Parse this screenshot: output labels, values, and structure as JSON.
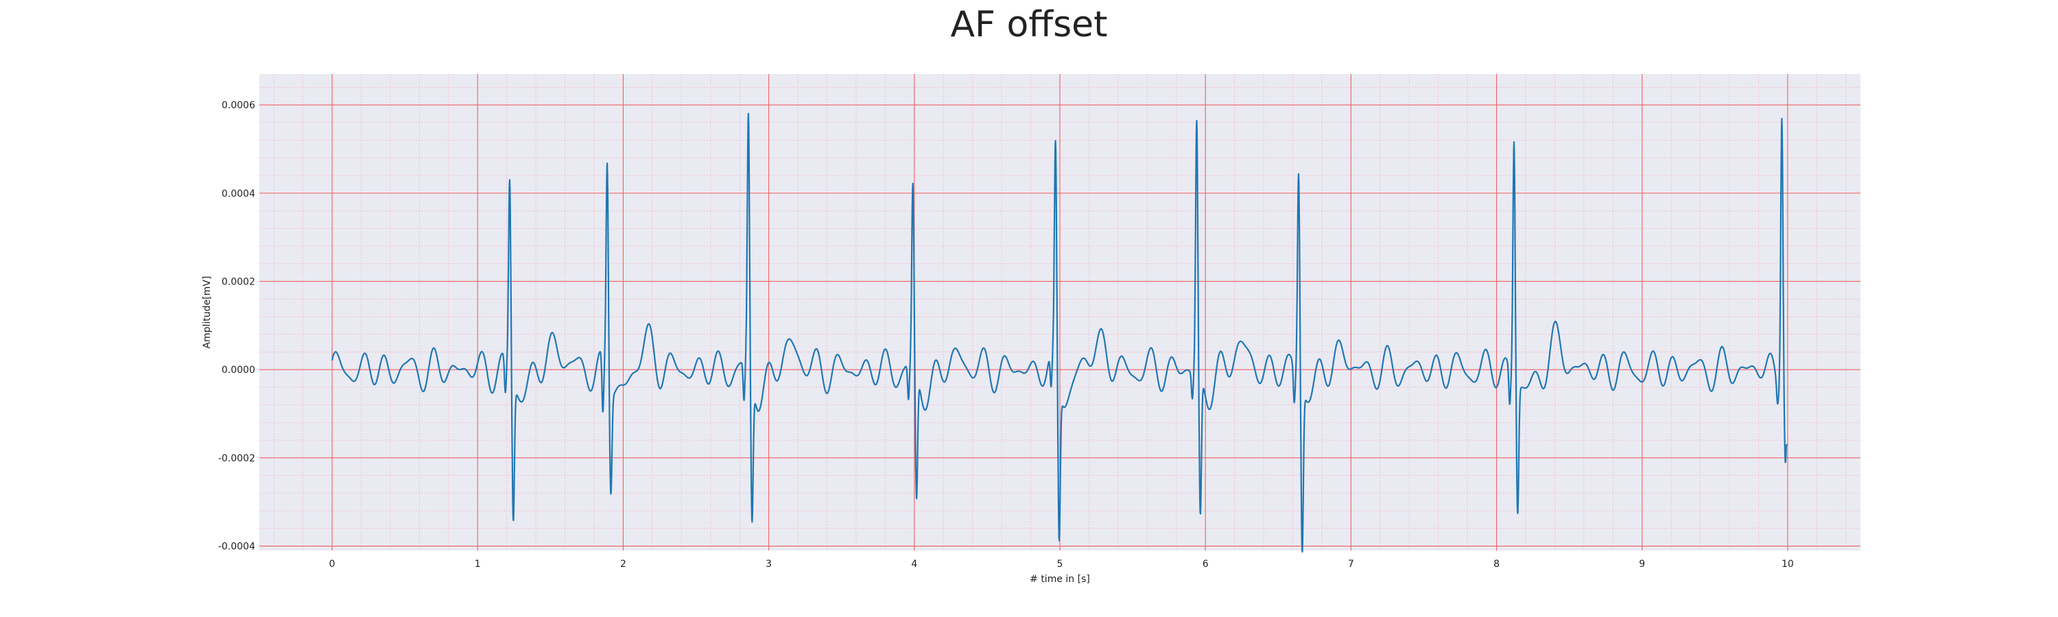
{
  "chart_data": {
    "type": "line",
    "title": "AF offset",
    "xlabel": "# time in [s]",
    "ylabel": "Amplitude[mV]",
    "xlim": [
      -0.5,
      10.5
    ],
    "ylim": [
      -0.00041,
      0.00067
    ],
    "xticks": [
      "0",
      "1",
      "2",
      "3",
      "4",
      "5",
      "6",
      "7",
      "8",
      "9",
      "10"
    ],
    "yticks": [
      "-0.0004",
      "-0.0002",
      "0.0000",
      "0.0002",
      "0.0004",
      "0.0006"
    ],
    "ytick_values": [
      -0.0004,
      -0.0002,
      0.0,
      0.0002,
      0.0004,
      0.0006
    ],
    "grid": true,
    "minor_grid": true,
    "background_color": "#eaeaf2",
    "grid_color": "#f06060",
    "minor_grid_color": "#f5b8c4",
    "series": [
      {
        "color": "#1f77b4",
        "beats": [
          {
            "t": 1.22,
            "peak": 0.00044,
            "trough": -0.00031,
            "q": -8e-05
          },
          {
            "t": 1.89,
            "peak": 0.00049,
            "trough": -0.00023,
            "q": -0.00013
          },
          {
            "t": 2.86,
            "peak": 0.00057,
            "trough": -0.00032,
            "q": -9e-05
          },
          {
            "t": 3.99,
            "peak": 0.00041,
            "trough": -0.00029,
            "q": -8e-05
          },
          {
            "t": 4.97,
            "peak": 0.0005,
            "trough": -0.00035,
            "q": -8e-05
          },
          {
            "t": 5.94,
            "peak": 0.00057,
            "trough": -0.00032,
            "q": -6e-05
          },
          {
            "t": 6.64,
            "peak": 0.00047,
            "trough": -0.00037,
            "q": -8e-05
          },
          {
            "t": 8.12,
            "peak": 0.00055,
            "trough": -0.00029,
            "q": -8e-05
          },
          {
            "t": 9.96,
            "peak": 0.00063,
            "trough": -0.00018,
            "q": -4e-05
          }
        ],
        "t_waves": [
          {
            "t": 1.54,
            "amp": 6e-05
          },
          {
            "t": 2.17,
            "amp": 6e-05
          },
          {
            "t": 3.16,
            "amp": 6e-05
          },
          {
            "t": 4.31,
            "amp": 3e-05
          },
          {
            "t": 5.26,
            "amp": 7e-05
          },
          {
            "t": 6.23,
            "amp": 6e-05
          },
          {
            "t": 6.92,
            "amp": 4e-05
          },
          {
            "t": 8.42,
            "amp": 6e-05
          }
        ],
        "end_value": -0.00017
      }
    ]
  }
}
